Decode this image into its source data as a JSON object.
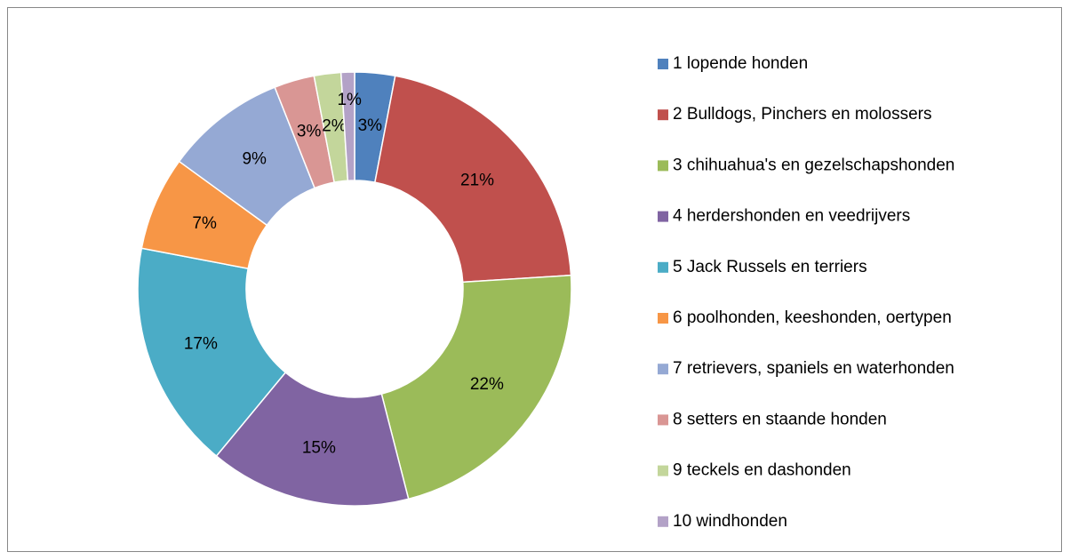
{
  "chart_data": {
    "type": "donut",
    "categories": [
      "1 lopende honden",
      "2 Bulldogs, Pinchers en molossers",
      "3 chihuahua's en gezelschapshonden",
      "4 herdershonden en veedrijvers",
      "5 Jack Russels en terriers",
      "6 poolhonden, keeshonden, oertypen",
      "7 retrievers, spaniels en waterhonden",
      "8 setters en staande honden",
      "9 teckels en dashonden",
      "10 windhonden"
    ],
    "values": [
      3,
      21,
      22,
      15,
      17,
      7,
      9,
      3,
      2,
      1
    ],
    "value_labels": [
      "3%",
      "21%",
      "22%",
      "15%",
      "17%",
      "7%",
      "9%",
      "3%",
      "2%",
      "1%"
    ],
    "colors": [
      "#4F81BD",
      "#C0504D",
      "#9BBB59",
      "#8064A2",
      "#4BACC6",
      "#F79646",
      "#95A9D4",
      "#D99694",
      "#C3D69B",
      "#B3A2C7"
    ],
    "legend": "right"
  }
}
